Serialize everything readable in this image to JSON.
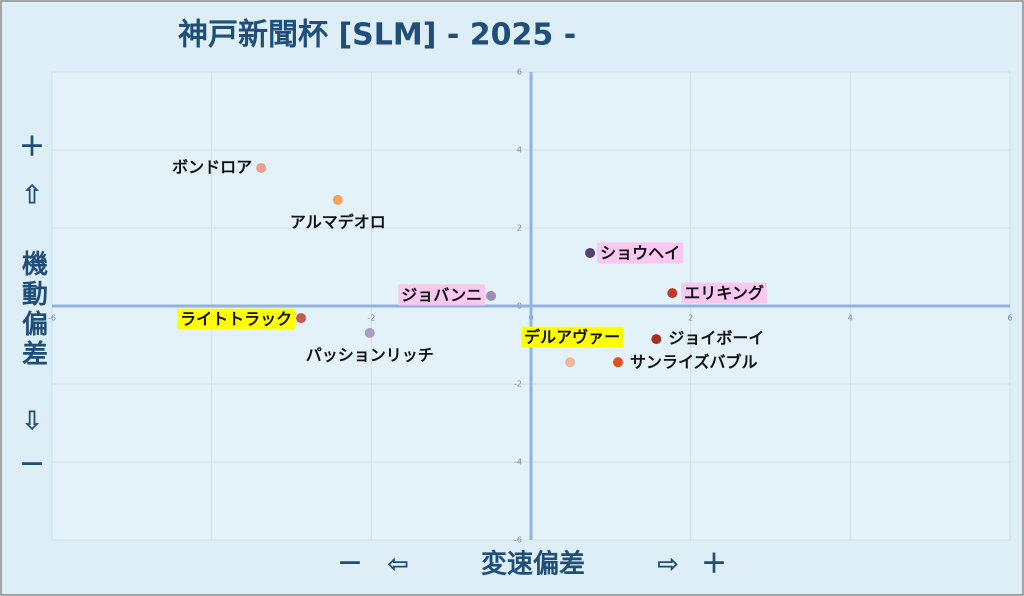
{
  "chart_data": {
    "type": "scatter",
    "title": "神戸新聞杯 [SLM]  - 2025 -",
    "x_axis_label": "変速偏差",
    "y_axis_label": "機動偏差",
    "x_axis_decor": [
      "－",
      "⇦",
      "⇨",
      "＋"
    ],
    "y_axis_decor": [
      "＋",
      "⇧",
      "⇩",
      "－"
    ],
    "xlim": [
      -6,
      6
    ],
    "ylim": [
      -6,
      6
    ],
    "xticks": [
      -6,
      -4,
      -2,
      0,
      2,
      4,
      6
    ],
    "yticks": [
      -6,
      -4,
      -2,
      0,
      2,
      4,
      6
    ],
    "grid": true,
    "points": [
      {
        "name": "ボンドロア",
        "x": -3.38,
        "y": 3.54,
        "color": "#e9a08c"
      },
      {
        "name": "アルマデオロ",
        "x": -2.42,
        "y": 2.72,
        "color": "#f2a55a"
      },
      {
        "name": "ショウヘイ",
        "x": 0.74,
        "y": 1.36,
        "color": "#5b3f72",
        "highlight": "#f9c8f0"
      },
      {
        "name": "エリキング",
        "x": 1.77,
        "y": 0.33,
        "color": "#c0392b",
        "highlight": "#f9c8f0"
      },
      {
        "name": "ジョバンニ",
        "x": -0.5,
        "y": 0.26,
        "color": "#9c8fb5",
        "highlight": "#f9c8f0"
      },
      {
        "name": "ライトトラック",
        "x": -2.88,
        "y": -0.31,
        "color": "#c9564e",
        "highlight": "#ffff00"
      },
      {
        "name": "パッションリッチ",
        "x": -2.02,
        "y": -0.69,
        "color": "#ab9cc6"
      },
      {
        "name": "ジョイボーイ",
        "x": 1.57,
        "y": -0.85,
        "color": "#a33222"
      },
      {
        "name": "デルアヴァー",
        "x": 0.49,
        "y": -1.44,
        "color": "#f2b3a3",
        "highlight": "#ffff00"
      },
      {
        "name": "サンライズバブル",
        "x": 1.09,
        "y": -1.44,
        "color": "#e0521f"
      }
    ]
  }
}
